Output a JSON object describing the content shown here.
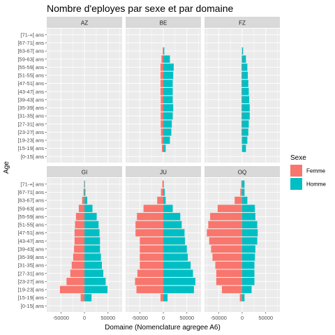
{
  "chart_data": {
    "type": "bar",
    "orientation": "horizontal",
    "layout": "facet-grid-2x3",
    "title": "Nombre d'eployes par sexe et par domaine",
    "xlabel": "Domaine (Nomenclature agregee A6)",
    "ylabel": "Age",
    "xlim": [
      -80000,
      80000
    ],
    "xticks": [
      -50000,
      0,
      50000
    ],
    "xtick_labels": [
      "-50000",
      "0",
      "50000"
    ],
    "categories": [
      "[0-15[ ans",
      "[15-19[ ans",
      "[19-23[ ans",
      "[23-27[ ans",
      "[27-31[ ans",
      "[31-35[ ans",
      "[35-39[ ans",
      "[39-43[ ans",
      "[43-47[ ans",
      "[47-51[ ans",
      "[51-55[ ans",
      "[55-59[ ans",
      "[59-63[ ans",
      "[63-67[ ans",
      "[67-71[ ans",
      "[71-+[ ans"
    ],
    "legend": {
      "title": "Sexe",
      "position": "right",
      "entries": [
        "Femme",
        "Homme"
      ]
    },
    "colors": {
      "Femme": "#F8766D",
      "Homme": "#00BFC4"
    },
    "facets": [
      {
        "name": "AZ",
        "series": [
          {
            "name": "Femme",
            "values": [
              0,
              0,
              0,
              0,
              0,
              0,
              0,
              0,
              0,
              0,
              0,
              0,
              0,
              0,
              0,
              0
            ]
          },
          {
            "name": "Homme",
            "values": [
              0,
              0,
              0,
              0,
              0,
              0,
              0,
              0,
              0,
              0,
              0,
              0,
              0,
              0,
              0,
              0
            ]
          }
        ]
      },
      {
        "name": "BE",
        "series": [
          {
            "name": "Femme",
            "values": [
              0,
              -3000,
              -4000,
              -5000,
              -5500,
              -5500,
              -5500,
              -5500,
              -6000,
              -6000,
              -6000,
              -6000,
              -4000,
              -1000,
              0,
              0
            ]
          },
          {
            "name": "Homme",
            "values": [
              0,
              5000,
              14000,
              17000,
              18000,
              20000,
              21000,
              20000,
              20000,
              20000,
              21000,
              22000,
              14000,
              2000,
              0,
              0
            ]
          }
        ]
      },
      {
        "name": "FZ",
        "series": [
          {
            "name": "Femme",
            "values": [
              0,
              -500,
              -1000,
              -1500,
              -1500,
              -1500,
              -1500,
              -1500,
              -1500,
              -1500,
              -1500,
              -1500,
              -1000,
              -500,
              0,
              0
            ]
          },
          {
            "name": "Homme",
            "values": [
              0,
              8000,
              11000,
              13000,
              14000,
              16000,
              16000,
              15000,
              14000,
              13000,
              12000,
              11000,
              8000,
              2000,
              0,
              0
            ]
          }
        ]
      },
      {
        "name": "GI",
        "series": [
          {
            "name": "Femme",
            "values": [
              0,
              -8000,
              -52000,
              -38000,
              -30000,
              -27000,
              -24000,
              -22000,
              -21000,
              -21000,
              -20000,
              -18000,
              -12000,
              -5000,
              -2000,
              -1000
            ]
          },
          {
            "name": "Homme",
            "values": [
              0,
              15000,
              49000,
              45000,
              40000,
              37000,
              35000,
              33000,
              33000,
              32000,
              30000,
              26000,
              17000,
              6000,
              2000,
              1000
            ]
          }
        ]
      },
      {
        "name": "JU",
        "series": [
          {
            "name": "Femme",
            "values": [
              0,
              -6000,
              -57000,
              -60000,
              -55000,
              -50000,
              -50000,
              -50000,
              -50000,
              -59000,
              -59000,
              -56000,
              -42000,
              -13000,
              -5000,
              -2000
            ]
          },
          {
            "name": "Homme",
            "values": [
              0,
              9000,
              65000,
              68000,
              63000,
              58000,
              52000,
              50000,
              46000,
              45000,
              39000,
              36000,
              20000,
              5000,
              3000,
              1000
            ]
          }
        ]
      },
      {
        "name": "OQ",
        "series": [
          {
            "name": "Femme",
            "values": [
              0,
              -5000,
              -43000,
              -55000,
              -55000,
              -57000,
              -63000,
              -66000,
              -70000,
              -75000,
              -72000,
              -68000,
              -52000,
              -16000,
              -4000,
              -2000
            ]
          },
          {
            "name": "Homme",
            "values": [
              0,
              5000,
              20000,
              26000,
              26000,
              26000,
              27000,
              28000,
              32000,
              33000,
              32000,
              28000,
              27000,
              11000,
              5000,
              5000
            ]
          }
        ]
      }
    ]
  }
}
